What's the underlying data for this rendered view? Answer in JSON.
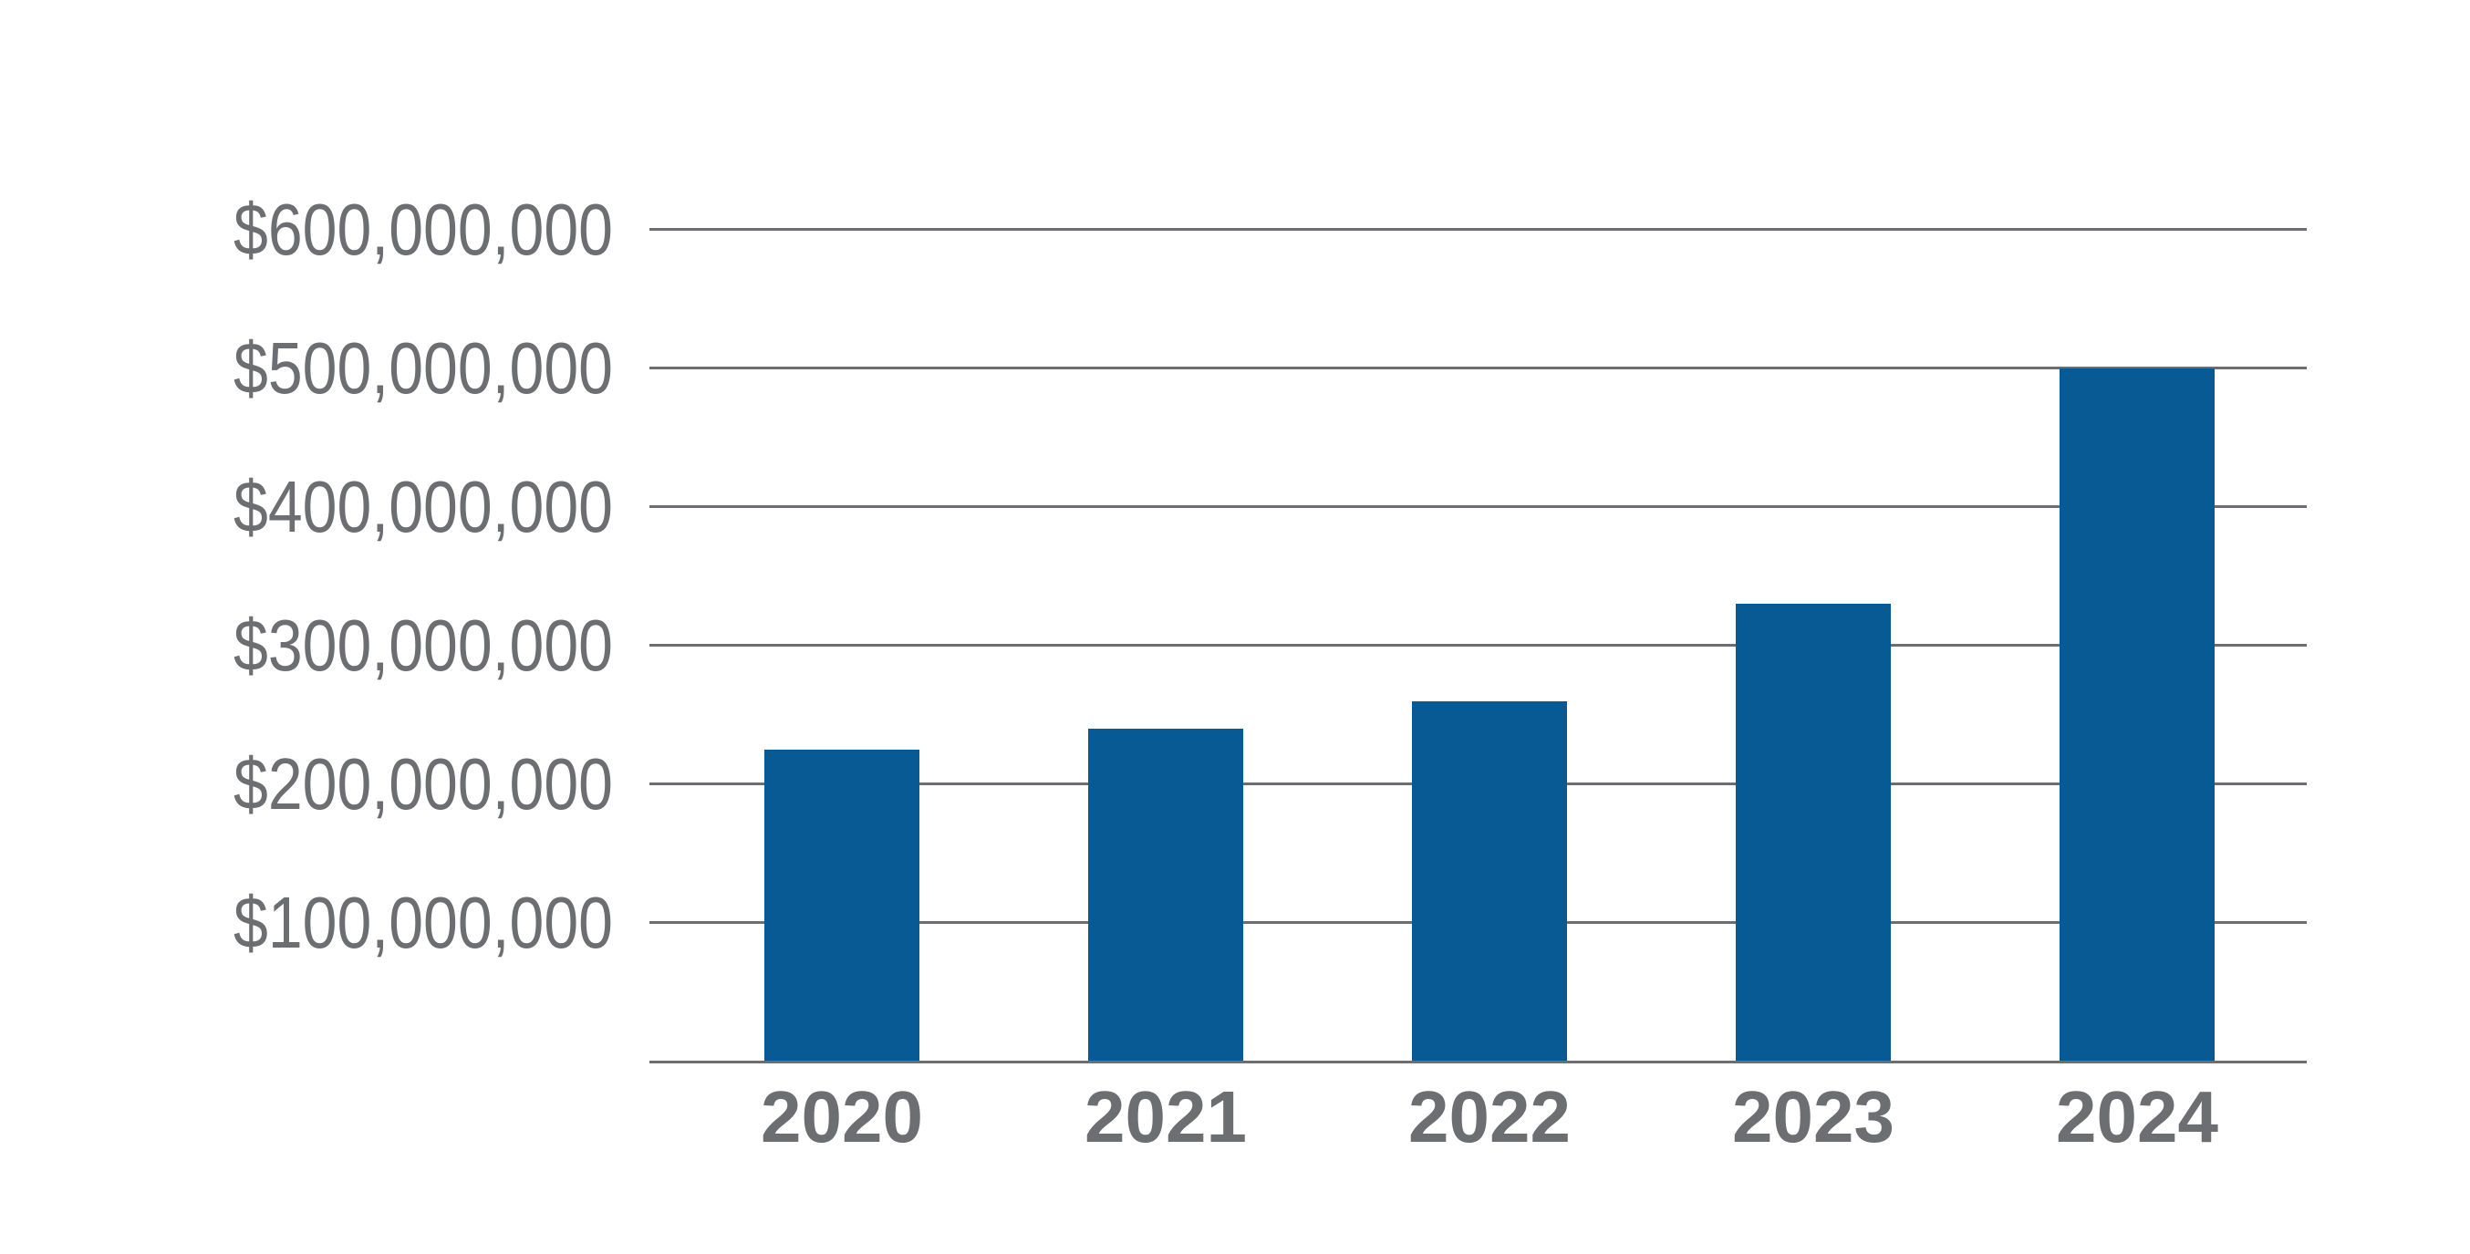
{
  "chart_data": {
    "type": "bar",
    "title": "",
    "xlabel": "",
    "ylabel": "",
    "categories": [
      "2020",
      "2021",
      "2022",
      "2023",
      "2024"
    ],
    "values": [
      225000000,
      240000000,
      260000000,
      330000000,
      500000000
    ],
    "ylim": [
      0,
      600000000
    ],
    "y_tick_step": 100000000,
    "y_tick_labels": [
      "$100,000,000",
      "$200,000,000",
      "$300,000,000",
      "$400,000,000",
      "$500,000,000",
      "$600,000,000"
    ],
    "grid": "horizontal-only",
    "legend": "none",
    "bar_value_labels_visible": false,
    "colors": {
      "bar": "#075A94",
      "gridline": "#6D6E71",
      "axis_line": "#6D6E71",
      "tick_label": "#6D6E71",
      "background": "#FFFFFF"
    }
  }
}
